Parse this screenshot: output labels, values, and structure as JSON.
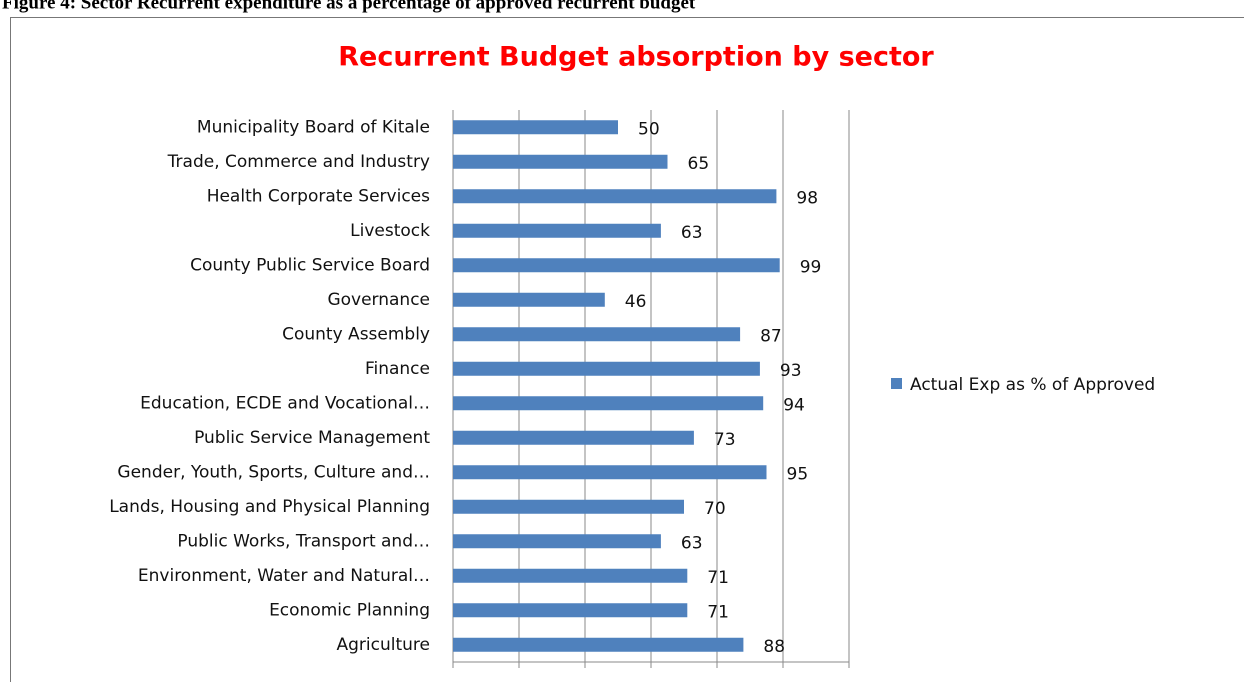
{
  "caption": "Figure 4: Sector Recurrent expenditure as a percentage of approved recurrent budget",
  "chart_data": {
    "type": "bar",
    "orientation": "horizontal",
    "title": "Recurrent Budget absorption by sector",
    "categories": [
      "Municipality Board of Kitale",
      "Trade, Commerce and Industry",
      "Health Corporate Services",
      "Livestock",
      "County Public Service Board",
      "Governance",
      "County Assembly",
      "Finance",
      "Education, ECDE and Vocational…",
      "Public Service Management",
      "Gender, Youth, Sports, Culture and…",
      "Lands, Housing and Physical Planning",
      "Public Works, Transport and…",
      "Environment, Water and Natural…",
      "Economic Planning",
      "Agriculture"
    ],
    "series": [
      {
        "name": "Actual Exp as % of Approved",
        "color": "#4f81bd",
        "values": [
          50,
          65,
          98,
          63,
          99,
          46,
          87,
          93,
          94,
          73,
          95,
          70,
          63,
          71,
          71,
          88
        ]
      }
    ],
    "xlim": [
      0,
      120
    ],
    "xticks": [
      0,
      20,
      40,
      60,
      80,
      100,
      120
    ],
    "grid": true,
    "legend": "right"
  }
}
